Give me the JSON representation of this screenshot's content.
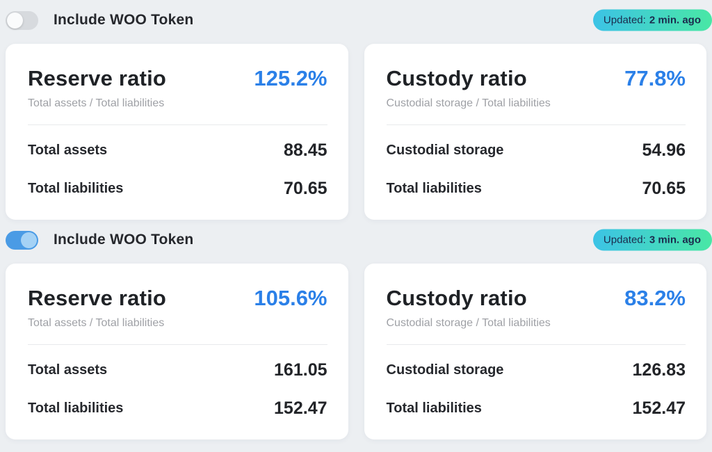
{
  "colors": {
    "accent_blue": "#2b80e8",
    "badge_gradient_start": "#3cc3e6",
    "badge_gradient_end": "#49e7a5",
    "toggle_on": "#4a9be5",
    "toggle_off": "#d7dade",
    "background": "#eceff2"
  },
  "sections": [
    {
      "toggle": {
        "label": "Include WOO Token",
        "state": "off"
      },
      "badge": {
        "prefix": "Updated:",
        "time": "2 min. ago"
      },
      "cards": [
        {
          "title": "Reserve ratio",
          "ratio": "125.2%",
          "subtitle": "Total assets / Total liabilities",
          "rows": [
            {
              "label": "Total assets",
              "value": "88.45"
            },
            {
              "label": "Total liabilities",
              "value": "70.65"
            }
          ]
        },
        {
          "title": "Custody ratio",
          "ratio": "77.8%",
          "subtitle": "Custodial storage / Total liabilities",
          "rows": [
            {
              "label": "Custodial storage",
              "value": "54.96"
            },
            {
              "label": "Total liabilities",
              "value": "70.65"
            }
          ]
        }
      ]
    },
    {
      "toggle": {
        "label": "Include WOO Token",
        "state": "on"
      },
      "badge": {
        "prefix": "Updated:",
        "time": "3 min. ago"
      },
      "cards": [
        {
          "title": "Reserve ratio",
          "ratio": "105.6%",
          "subtitle": "Total assets / Total liabilities",
          "rows": [
            {
              "label": "Total assets",
              "value": "161.05"
            },
            {
              "label": "Total liabilities",
              "value": "152.47"
            }
          ]
        },
        {
          "title": "Custody ratio",
          "ratio": "83.2%",
          "subtitle": "Custodial storage / Total liabilities",
          "rows": [
            {
              "label": "Custodial storage",
              "value": "126.83"
            },
            {
              "label": "Total liabilities",
              "value": "152.47"
            }
          ]
        }
      ]
    }
  ]
}
